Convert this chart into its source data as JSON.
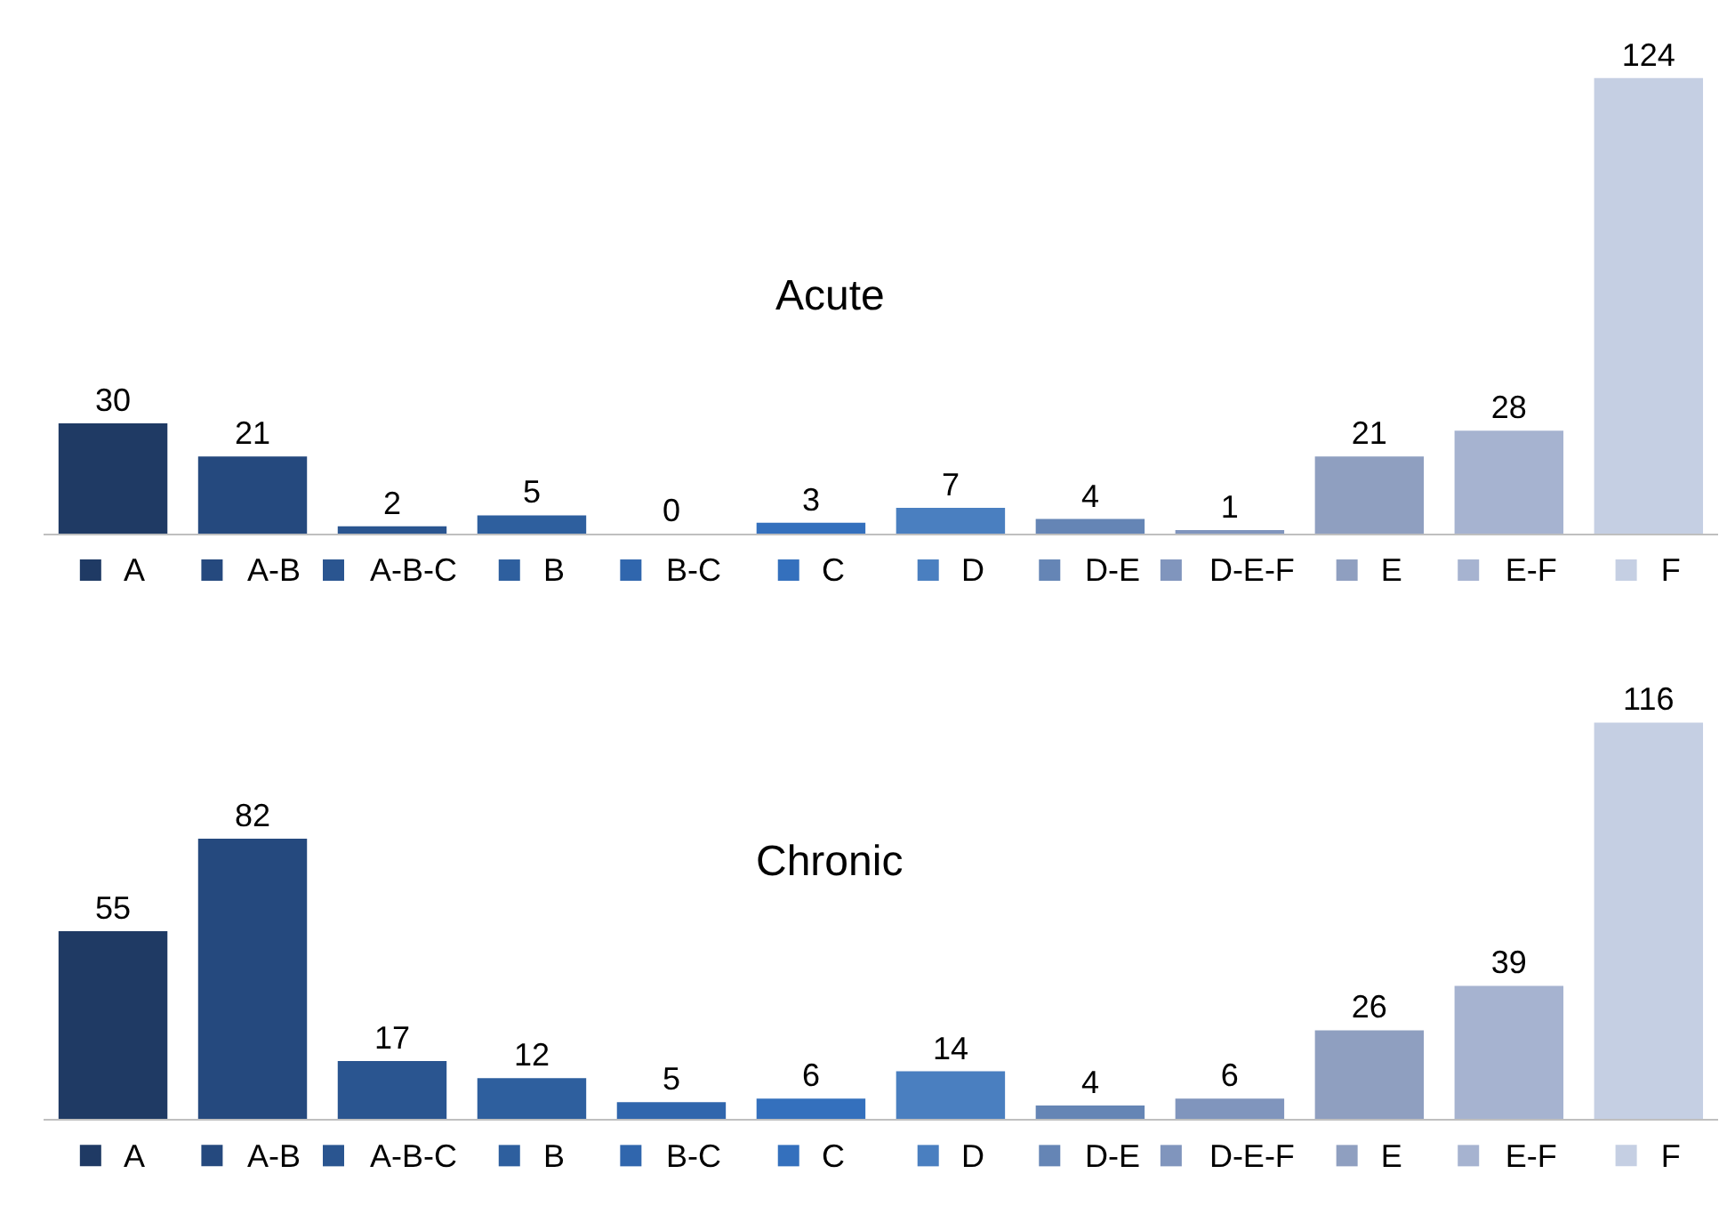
{
  "chart_data": [
    {
      "type": "bar",
      "title": "Acute",
      "categories": [
        "A",
        "A-B",
        "A-B-C",
        "B",
        "B-C",
        "C",
        "D",
        "D-E",
        "D-E-F",
        "E",
        "E-F",
        "F"
      ],
      "values": [
        30,
        21,
        2,
        5,
        0,
        3,
        7,
        4,
        1,
        21,
        28,
        124
      ],
      "colors": [
        "#1f3a64",
        "#25497e",
        "#2a5590",
        "#2e5f9e",
        "#3066ad",
        "#3470bd",
        "#4a7fc0",
        "#6585b5",
        "#8095bd",
        "#8f9fc0",
        "#a6b3d0",
        "#c5cfe3"
      ],
      "data_labels": true,
      "tick_labels": "x"
    },
    {
      "type": "bar",
      "title": "Chronic",
      "categories": [
        "A",
        "A-B",
        "A-B-C",
        "B",
        "B-C",
        "C",
        "D",
        "D-E",
        "D-E-F",
        "E",
        "E-F",
        "F"
      ],
      "values": [
        55,
        82,
        17,
        12,
        5,
        6,
        14,
        4,
        6,
        26,
        39,
        116
      ],
      "colors": [
        "#1f3a64",
        "#25497e",
        "#2a5590",
        "#2e5f9e",
        "#3066ad",
        "#3470bd",
        "#4a7fc0",
        "#6585b5",
        "#8095bd",
        "#8f9fc0",
        "#a6b3d0",
        "#c5cfe3"
      ],
      "data_labels": true,
      "tick_labels": "x"
    }
  ]
}
